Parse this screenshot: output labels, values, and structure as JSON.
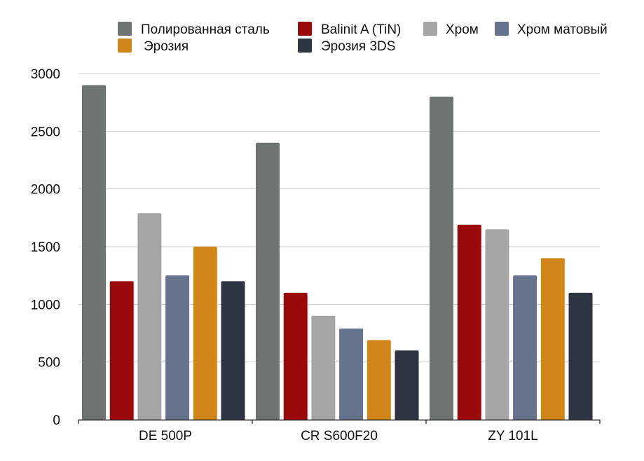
{
  "chart_data": {
    "type": "bar",
    "categories": [
      "DE 500P",
      "CR S600F20",
      "ZY 101L"
    ],
    "series": [
      {
        "name": "Полированная сталь",
        "color": "#6e7470",
        "values": [
          2900,
          2400,
          2800
        ]
      },
      {
        "name": "Balinit A (TiN)",
        "color": "#9a0a0b",
        "values": [
          1200,
          1100,
          1690
        ]
      },
      {
        "name": "Хром",
        "color": "#a6a6a6",
        "values": [
          1790,
          900,
          1650
        ]
      },
      {
        "name": "Хром матовый",
        "color": "#66738d",
        "values": [
          1250,
          790,
          1250
        ]
      },
      {
        "name": "Эрозия",
        "color": "#d0861b",
        "values": [
          1500,
          690,
          1400
        ]
      },
      {
        "name": "Эрозия 3DS",
        "color": "#2e3441",
        "values": [
          1200,
          600,
          1100
        ]
      }
    ],
    "ylim": [
      0,
      3000
    ],
    "yticks": [
      "0",
      "500",
      "1000",
      "1500",
      "2000",
      "2500",
      "3000"
    ],
    "grid": true,
    "legend_position": "top",
    "title": "",
    "xlabel": "",
    "ylabel": ""
  }
}
